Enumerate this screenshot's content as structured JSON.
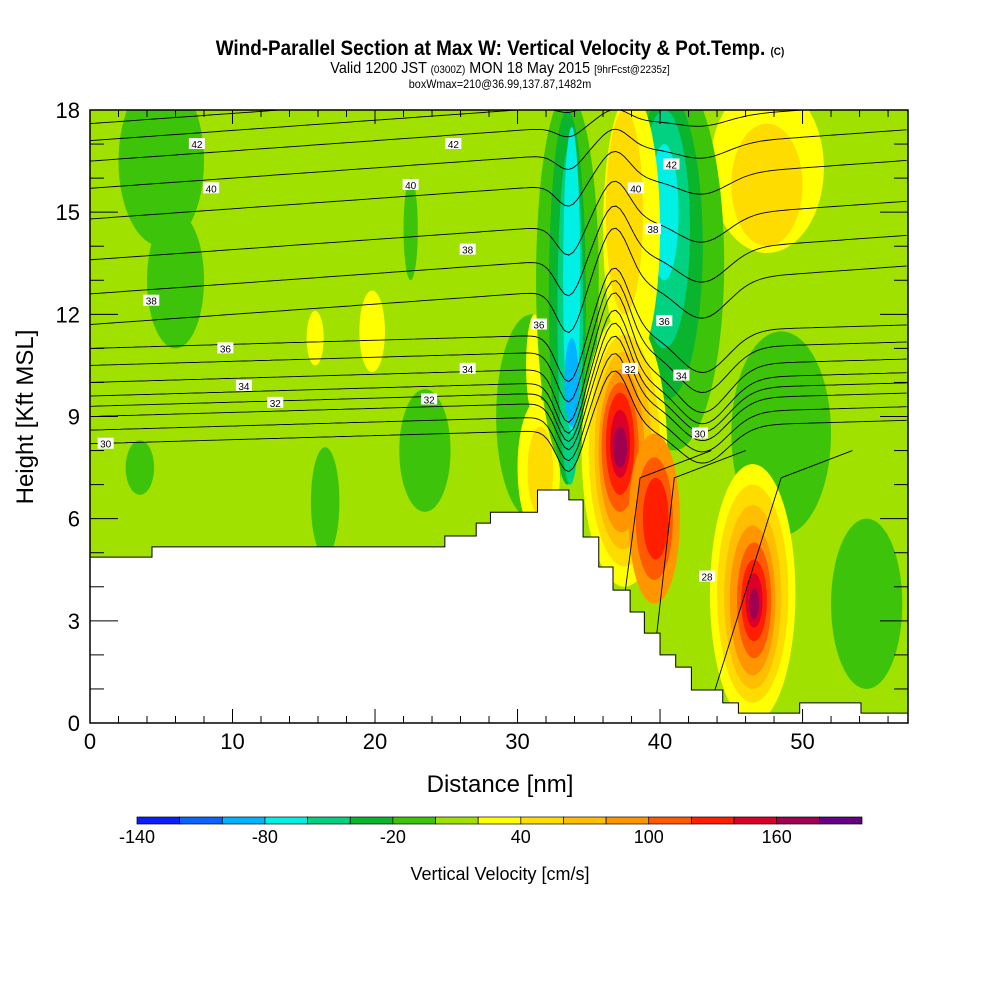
{
  "header": {
    "title": "Wind-Parallel Section at Max W: Vertical Velocity & Pot.Temp.",
    "copyright": "(C)",
    "valid_prefix": "Valid 1200 JST",
    "valid_utc": "(0300Z)",
    "valid_date": "MON 18 May 2015",
    "forecast": "[9hrFcst@2235z]",
    "box_info": "boxWmax=210@36.99,137.87,1482m"
  },
  "chart_data": {
    "type": "heatmap",
    "title": "Wind-Parallel Section at Max W: Vertical Velocity & Pot.Temp.",
    "xlabel": "Distance [nm]",
    "ylabel": "Height [Kft MSL]",
    "xlim": [
      0,
      57.4
    ],
    "ylim": [
      0,
      18
    ],
    "xticks": [
      0,
      10,
      20,
      30,
      40,
      50
    ],
    "yticks": [
      0,
      3,
      6,
      9,
      12,
      15,
      18
    ],
    "colorbar": {
      "label": "Vertical Velocity [cm/s]",
      "min": -140,
      "step": 20,
      "tick_labels": [
        -140,
        -80,
        -20,
        40,
        100,
        160
      ],
      "colors": [
        "#0a1eff",
        "#0a64ff",
        "#00b4ff",
        "#00f0e6",
        "#00d282",
        "#0ab42d",
        "#3cc30a",
        "#a0e100",
        "#ffff00",
        "#ffdc00",
        "#ffbe00",
        "#ff9600",
        "#ff5a00",
        "#ff1e00",
        "#dc0028",
        "#a00050",
        "#640082"
      ]
    },
    "background_value": 10,
    "w_features": [
      {
        "x": 5,
        "y": 16.5,
        "rx": 3,
        "ry": 2.5,
        "v": -10
      },
      {
        "x": 6,
        "y": 13,
        "rx": 2,
        "ry": 2,
        "v": -10
      },
      {
        "x": 3.5,
        "y": 7.5,
        "rx": 1,
        "ry": 0.8,
        "v": -10
      },
      {
        "x": 16.5,
        "y": 6.5,
        "rx": 1,
        "ry": 1.6,
        "v": -10
      },
      {
        "x": 23.5,
        "y": 8,
        "rx": 1.8,
        "ry": 1.8,
        "v": -10
      },
      {
        "x": 22.5,
        "y": 14.5,
        "rx": 0.5,
        "ry": 1.5,
        "v": -10
      },
      {
        "x": 15.8,
        "y": 11.3,
        "rx": 0.6,
        "ry": 0.8,
        "v": 30
      },
      {
        "x": 19.8,
        "y": 11.5,
        "rx": 0.9,
        "ry": 1.2,
        "v": 30
      },
      {
        "x": 47.5,
        "y": 16.3,
        "rx": 4,
        "ry": 2.5,
        "v": 30
      },
      {
        "x": 47.5,
        "y": 15.8,
        "rx": 2.5,
        "ry": 1.8,
        "v": 50
      },
      {
        "x": 48.5,
        "y": 8.5,
        "rx": 3.5,
        "ry": 3,
        "v": -10
      },
      {
        "x": 54.5,
        "y": 3.5,
        "rx": 2.5,
        "ry": 2.5,
        "v": -10
      },
      {
        "x": 31,
        "y": 9,
        "rx": 2.5,
        "ry": 3,
        "v": -10
      },
      {
        "x": 31.2,
        "y": 10.5,
        "rx": 0.6,
        "ry": 1.5,
        "v": 30
      },
      {
        "x": 31.5,
        "y": 7.5,
        "rx": 1.5,
        "ry": 2,
        "v": 30
      },
      {
        "x": 31.6,
        "y": 7.4,
        "rx": 0.9,
        "ry": 1.3,
        "v": 50
      },
      {
        "x": 33.5,
        "y": 13,
        "rx": 2.2,
        "ry": 5.5,
        "v": -10
      },
      {
        "x": 33.5,
        "y": 12.5,
        "rx": 1.3,
        "ry": 5.5,
        "v": -30
      },
      {
        "x": 33.7,
        "y": 12,
        "rx": 0.9,
        "ry": 5,
        "v": -50
      },
      {
        "x": 33.8,
        "y": 13,
        "rx": 0.6,
        "ry": 4.5,
        "v": -70
      },
      {
        "x": 33.8,
        "y": 10,
        "rx": 0.5,
        "ry": 1.3,
        "v": -90
      },
      {
        "x": 41,
        "y": 13.5,
        "rx": 3.5,
        "ry": 5.5,
        "v": -10
      },
      {
        "x": 40.5,
        "y": 14,
        "rx": 2.5,
        "ry": 4.5,
        "v": -30
      },
      {
        "x": 40.3,
        "y": 14.5,
        "rx": 1.8,
        "ry": 3.5,
        "v": -50
      },
      {
        "x": 40.3,
        "y": 15,
        "rx": 1,
        "ry": 2,
        "v": -70
      },
      {
        "x": 38,
        "y": 14.5,
        "rx": 2,
        "ry": 4,
        "v": 30
      },
      {
        "x": 37.5,
        "y": 15,
        "rx": 1.3,
        "ry": 3,
        "v": 50
      },
      {
        "x": 37.5,
        "y": 8,
        "rx": 3,
        "ry": 4,
        "v": 30
      },
      {
        "x": 37.5,
        "y": 8,
        "rx": 2.5,
        "ry": 3.4,
        "v": 50
      },
      {
        "x": 37.4,
        "y": 8,
        "rx": 2,
        "ry": 2.9,
        "v": 70
      },
      {
        "x": 37.3,
        "y": 8,
        "rx": 1.6,
        "ry": 2.4,
        "v": 90
      },
      {
        "x": 37.2,
        "y": 8.1,
        "rx": 1.3,
        "ry": 1.9,
        "v": 110
      },
      {
        "x": 37.2,
        "y": 8.2,
        "rx": 1,
        "ry": 1.5,
        "v": 130
      },
      {
        "x": 37.2,
        "y": 8.2,
        "rx": 0.7,
        "ry": 1,
        "v": 150
      },
      {
        "x": 37.2,
        "y": 8.1,
        "rx": 0.5,
        "ry": 0.6,
        "v": 170
      },
      {
        "x": 39.6,
        "y": 6,
        "rx": 1.8,
        "ry": 2.5,
        "v": 90
      },
      {
        "x": 39.6,
        "y": 6,
        "rx": 1.3,
        "ry": 1.8,
        "v": 110
      },
      {
        "x": 39.7,
        "y": 6,
        "rx": 0.9,
        "ry": 1.2,
        "v": 130
      },
      {
        "x": 46.5,
        "y": 3.8,
        "rx": 3,
        "ry": 3.8,
        "v": 30
      },
      {
        "x": 46.5,
        "y": 3.8,
        "rx": 2.5,
        "ry": 3.2,
        "v": 50
      },
      {
        "x": 46.5,
        "y": 3.7,
        "rx": 2,
        "ry": 2.7,
        "v": 70
      },
      {
        "x": 46.5,
        "y": 3.6,
        "rx": 1.6,
        "ry": 2.2,
        "v": 90
      },
      {
        "x": 46.6,
        "y": 3.6,
        "rx": 1.2,
        "ry": 1.7,
        "v": 110
      },
      {
        "x": 46.6,
        "y": 3.6,
        "rx": 0.9,
        "ry": 1.2,
        "v": 130
      },
      {
        "x": 46.6,
        "y": 3.6,
        "rx": 0.6,
        "ry": 0.8,
        "v": 150
      },
      {
        "x": 46.6,
        "y": 3.5,
        "rx": 0.35,
        "ry": 0.45,
        "v": 170
      }
    ],
    "theta_contours": [
      8.2,
      8.6,
      9.0,
      9.3,
      9.6,
      10.0,
      10.5,
      11.0,
      11.7,
      12.6,
      13.6,
      14.8,
      15.7,
      16.5,
      17.1,
      17.6
    ],
    "theta_labels": [
      {
        "text": "42",
        "x": 7.5,
        "y": 17.0
      },
      {
        "text": "42",
        "x": 25.5,
        "y": 17.0
      },
      {
        "text": "42",
        "x": 40.8,
        "y": 16.4
      },
      {
        "text": "40",
        "x": 8.5,
        "y": 15.7
      },
      {
        "text": "40",
        "x": 22.5,
        "y": 15.8
      },
      {
        "text": "40",
        "x": 38.3,
        "y": 15.7
      },
      {
        "text": "38",
        "x": 26.5,
        "y": 13.9
      },
      {
        "text": "38",
        "x": 39.5,
        "y": 14.5
      },
      {
        "text": "38",
        "x": 4.3,
        "y": 12.4
      },
      {
        "text": "36",
        "x": 31.5,
        "y": 11.7
      },
      {
        "text": "36",
        "x": 40.3,
        "y": 11.8
      },
      {
        "text": "36",
        "x": 9.5,
        "y": 11
      },
      {
        "text": "34",
        "x": 26.5,
        "y": 10.4
      },
      {
        "text": "34",
        "x": 41.5,
        "y": 10.2
      },
      {
        "text": "34",
        "x": 10.8,
        "y": 9.9
      },
      {
        "text": "32",
        "x": 23.8,
        "y": 9.5
      },
      {
        "text": "32",
        "x": 37.9,
        "y": 10.4
      },
      {
        "text": "32",
        "x": 13,
        "y": 9.4
      },
      {
        "text": "30",
        "x": 1.1,
        "y": 8.2
      },
      {
        "text": "30",
        "x": 42.8,
        "y": 8.5
      },
      {
        "text": "28",
        "x": 43.3,
        "y": 4.3
      }
    ],
    "terrain": [
      [
        0,
        0
      ],
      [
        0,
        4.87
      ],
      [
        4.35,
        4.87
      ],
      [
        4.35,
        5.17
      ],
      [
        24.9,
        5.17
      ],
      [
        24.9,
        5.49
      ],
      [
        27.1,
        5.49
      ],
      [
        27.1,
        5.87
      ],
      [
        28.1,
        5.87
      ],
      [
        28.1,
        6.19
      ],
      [
        31.4,
        6.19
      ],
      [
        31.4,
        6.84
      ],
      [
        33.6,
        6.84
      ],
      [
        33.6,
        6.55
      ],
      [
        34.6,
        6.55
      ],
      [
        34.6,
        5.46
      ],
      [
        35.7,
        5.46
      ],
      [
        35.7,
        4.58
      ],
      [
        36.7,
        4.58
      ],
      [
        36.7,
        3.9
      ],
      [
        37.9,
        3.9
      ],
      [
        37.9,
        3.26
      ],
      [
        38.9,
        3.26
      ],
      [
        38.9,
        2.64
      ],
      [
        40.0,
        2.64
      ],
      [
        40.0,
        2.0
      ],
      [
        41.1,
        2.0
      ],
      [
        41.1,
        1.64
      ],
      [
        42.2,
        1.64
      ],
      [
        42.2,
        0.97
      ],
      [
        44.4,
        0.97
      ],
      [
        44.4,
        0.59
      ],
      [
        45.5,
        0.59
      ],
      [
        45.5,
        0.29
      ],
      [
        49.8,
        0.29
      ],
      [
        49.8,
        0.59
      ],
      [
        54.1,
        0.59
      ],
      [
        54.1,
        0.29
      ],
      [
        57.4,
        0.29
      ],
      [
        57.4,
        0
      ]
    ]
  }
}
